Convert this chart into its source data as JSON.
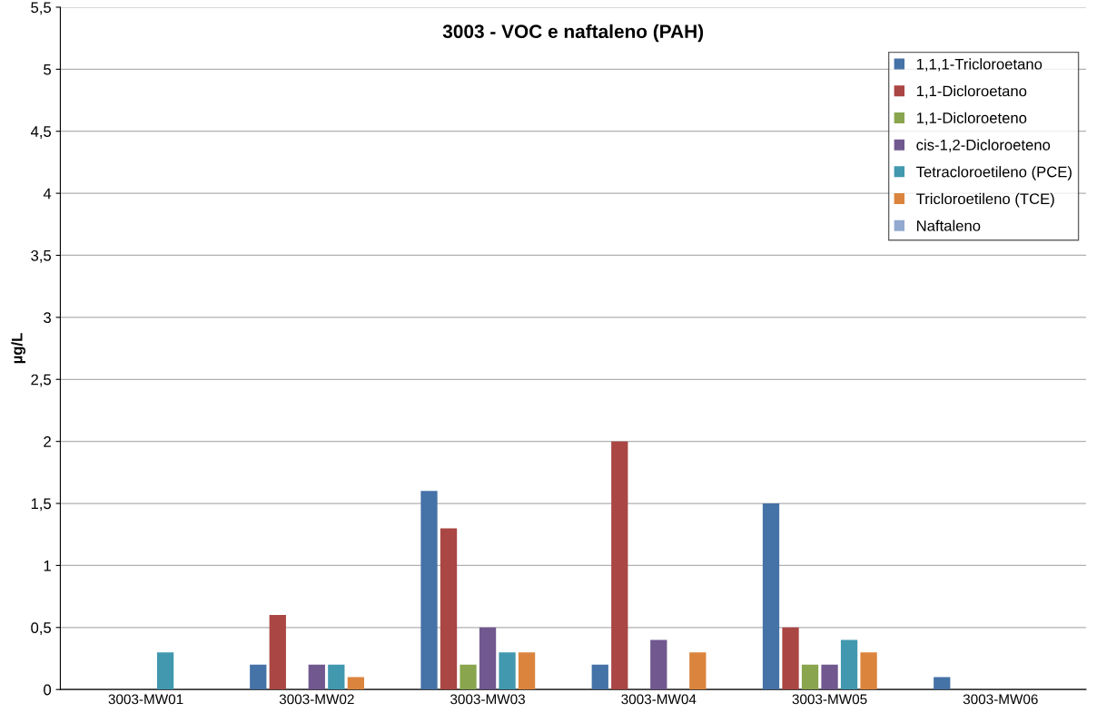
{
  "chart_data": {
    "type": "bar",
    "title": "3003 - VOC e naftaleno (PAH)",
    "ylabel": "µg/L",
    "categories": [
      "3003-MW01",
      "3003-MW02",
      "3003-MW03",
      "3003-MW04",
      "3003-MW05",
      "3003-MW06"
    ],
    "series": [
      {
        "name": "1,1,1-Tricloroetano",
        "color": "#4572a7",
        "values": [
          0,
          0.2,
          1.6,
          0.2,
          1.5,
          0.1
        ]
      },
      {
        "name": "1,1-Dicloroetano",
        "color": "#aa4643",
        "values": [
          0,
          0.6,
          1.3,
          2.0,
          0.5,
          0
        ]
      },
      {
        "name": "1,1-Dicloroeteno",
        "color": "#89a54e",
        "values": [
          0,
          0,
          0.2,
          0,
          0.2,
          0
        ]
      },
      {
        "name": "cis-1,2-Dicloroeteno",
        "color": "#71588f",
        "values": [
          0,
          0.2,
          0.5,
          0.4,
          0.2,
          0
        ]
      },
      {
        "name": "Tetracloroetileno (PCE)",
        "color": "#4198af",
        "values": [
          0.3,
          0.2,
          0.3,
          0,
          0.4,
          0
        ]
      },
      {
        "name": "Tricloroetileno (TCE)",
        "color": "#db843d",
        "values": [
          0,
          0.1,
          0.3,
          0.3,
          0.3,
          0
        ]
      },
      {
        "name": "Naftaleno",
        "color": "#93a9cf",
        "values": [
          0,
          0,
          0,
          0,
          0,
          0
        ]
      }
    ],
    "ylim": [
      0,
      5.5
    ],
    "yticks": [
      {
        "value": 0,
        "label": "0"
      },
      {
        "value": 0.5,
        "label": "0,5"
      },
      {
        "value": 1,
        "label": "1"
      },
      {
        "value": 1.5,
        "label": "1,5"
      },
      {
        "value": 2,
        "label": "2"
      },
      {
        "value": 2.5,
        "label": "2,5"
      },
      {
        "value": 3,
        "label": "3"
      },
      {
        "value": 3.5,
        "label": "3,5"
      },
      {
        "value": 4,
        "label": "4"
      },
      {
        "value": 4.5,
        "label": "4,5"
      },
      {
        "value": 5,
        "label": "5"
      },
      {
        "value": 5.5,
        "label": "5,5"
      }
    ],
    "grid": "y",
    "legend": "top right"
  }
}
